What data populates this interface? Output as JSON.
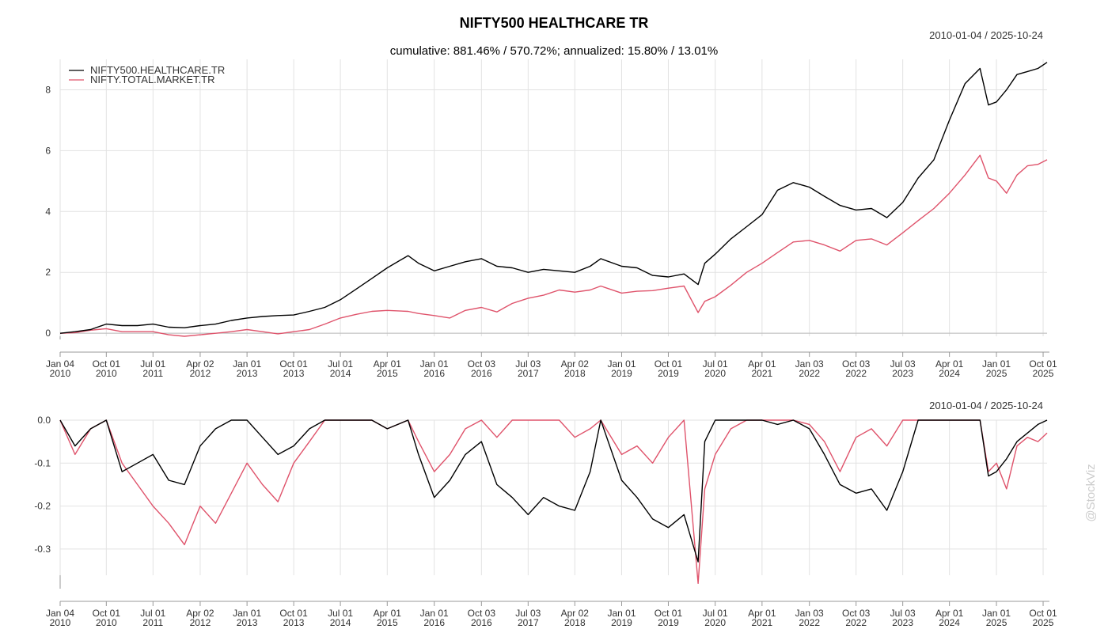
{
  "chart_data": [
    {
      "type": "line",
      "title": "NIFTY500 HEALTHCARE TR",
      "subtitle": "cumulative: 881.46% / 570.72%; annualized: 15.80% / 13.01%",
      "date_range": "2010-01-04 / 2025-10-24",
      "ylim": [
        -0.1,
        9.0
      ],
      "y_ticks": [
        0,
        2,
        4,
        6,
        8
      ],
      "x_ticks": [
        {
          "date": "2010-01-04",
          "label1": "Jan 04",
          "label2": "2010"
        },
        {
          "date": "2010-10-01",
          "label1": "Oct 01",
          "label2": "2010"
        },
        {
          "date": "2011-07-01",
          "label1": "Jul 01",
          "label2": "2011"
        },
        {
          "date": "2012-04-02",
          "label1": "Apr 02",
          "label2": "2012"
        },
        {
          "date": "2013-01-01",
          "label1": "Jan 01",
          "label2": "2013"
        },
        {
          "date": "2013-10-01",
          "label1": "Oct 01",
          "label2": "2013"
        },
        {
          "date": "2014-07-01",
          "label1": "Jul 01",
          "label2": "2014"
        },
        {
          "date": "2015-04-01",
          "label1": "Apr 01",
          "label2": "2015"
        },
        {
          "date": "2016-01-01",
          "label1": "Jan 01",
          "label2": "2016"
        },
        {
          "date": "2016-10-03",
          "label1": "Oct 03",
          "label2": "2016"
        },
        {
          "date": "2017-07-03",
          "label1": "Jul 03",
          "label2": "2017"
        },
        {
          "date": "2018-04-02",
          "label1": "Apr 02",
          "label2": "2018"
        },
        {
          "date": "2019-01-01",
          "label1": "Jan 01",
          "label2": "2019"
        },
        {
          "date": "2019-10-01",
          "label1": "Oct 01",
          "label2": "2019"
        },
        {
          "date": "2020-07-01",
          "label1": "Jul 01",
          "label2": "2020"
        },
        {
          "date": "2021-04-01",
          "label1": "Apr 01",
          "label2": "2021"
        },
        {
          "date": "2022-01-03",
          "label1": "Jan 03",
          "label2": "2022"
        },
        {
          "date": "2022-10-03",
          "label1": "Oct 03",
          "label2": "2022"
        },
        {
          "date": "2023-07-03",
          "label1": "Jul 03",
          "label2": "2023"
        },
        {
          "date": "2024-04-01",
          "label1": "Apr 01",
          "label2": "2024"
        },
        {
          "date": "2025-01-01",
          "label1": "Jan 01",
          "label2": "2025"
        },
        {
          "date": "2025-10-01",
          "label1": "Oct 01",
          "label2": "2025"
        }
      ],
      "legend_position": "top-left",
      "series": [
        {
          "name": "NIFTY500.HEALTHCARE.TR",
          "color": "#000000",
          "x": [
            "2010-01-04",
            "2010-04-01",
            "2010-07-01",
            "2010-10-01",
            "2011-01-01",
            "2011-04-01",
            "2011-07-01",
            "2011-10-01",
            "2012-01-01",
            "2012-04-02",
            "2012-07-01",
            "2012-10-01",
            "2013-01-01",
            "2013-04-01",
            "2013-07-01",
            "2013-10-01",
            "2014-01-01",
            "2014-04-01",
            "2014-07-01",
            "2014-10-01",
            "2015-01-01",
            "2015-04-01",
            "2015-08-01",
            "2015-10-01",
            "2016-01-01",
            "2016-04-01",
            "2016-07-01",
            "2016-10-03",
            "2017-01-01",
            "2017-04-01",
            "2017-07-03",
            "2017-10-01",
            "2018-01-01",
            "2018-04-02",
            "2018-07-01",
            "2018-09-01",
            "2019-01-01",
            "2019-04-01",
            "2019-07-01",
            "2019-10-01",
            "2020-01-01",
            "2020-03-23",
            "2020-05-01",
            "2020-07-01",
            "2020-10-01",
            "2021-01-01",
            "2021-04-01",
            "2021-07-01",
            "2021-10-01",
            "2022-01-03",
            "2022-04-01",
            "2022-07-01",
            "2022-10-03",
            "2023-01-01",
            "2023-04-01",
            "2023-07-03",
            "2023-10-01",
            "2024-01-01",
            "2024-04-01",
            "2024-07-01",
            "2024-09-27",
            "2024-11-15",
            "2025-01-01",
            "2025-03-01",
            "2025-05-01",
            "2025-07-01",
            "2025-09-01",
            "2025-10-24"
          ],
          "values": [
            0.0,
            0.05,
            0.12,
            0.3,
            0.25,
            0.25,
            0.3,
            0.2,
            0.18,
            0.25,
            0.3,
            0.42,
            0.5,
            0.55,
            0.58,
            0.6,
            0.72,
            0.85,
            1.1,
            1.45,
            1.8,
            2.15,
            2.55,
            2.3,
            2.05,
            2.2,
            2.35,
            2.45,
            2.2,
            2.15,
            2.0,
            2.1,
            2.05,
            2.0,
            2.2,
            2.45,
            2.2,
            2.15,
            1.9,
            1.85,
            1.95,
            1.6,
            2.3,
            2.6,
            3.1,
            3.5,
            3.9,
            4.7,
            4.95,
            4.8,
            4.5,
            4.2,
            4.05,
            4.1,
            3.8,
            4.3,
            5.1,
            5.7,
            7.0,
            8.2,
            8.7,
            7.5,
            7.6,
            8.0,
            8.5,
            8.6,
            8.7,
            8.9
          ]
        },
        {
          "name": "NIFTY.TOTAL.MARKET.TR",
          "color": "#df536b",
          "x": [
            "2010-01-04",
            "2010-04-01",
            "2010-07-01",
            "2010-10-01",
            "2011-01-01",
            "2011-04-01",
            "2011-07-01",
            "2011-10-01",
            "2012-01-01",
            "2012-04-02",
            "2012-07-01",
            "2012-10-01",
            "2013-01-01",
            "2013-04-01",
            "2013-07-01",
            "2013-10-01",
            "2014-01-01",
            "2014-04-01",
            "2014-07-01",
            "2014-10-01",
            "2015-01-01",
            "2015-04-01",
            "2015-08-01",
            "2015-10-01",
            "2016-01-01",
            "2016-04-01",
            "2016-07-01",
            "2016-10-03",
            "2017-01-01",
            "2017-04-01",
            "2017-07-03",
            "2017-10-01",
            "2018-01-01",
            "2018-04-02",
            "2018-07-01",
            "2018-09-01",
            "2019-01-01",
            "2019-04-01",
            "2019-07-01",
            "2019-10-01",
            "2020-01-01",
            "2020-03-23",
            "2020-05-01",
            "2020-07-01",
            "2020-10-01",
            "2021-01-01",
            "2021-04-01",
            "2021-07-01",
            "2021-10-01",
            "2022-01-03",
            "2022-04-01",
            "2022-07-01",
            "2022-10-03",
            "2023-01-01",
            "2023-04-01",
            "2023-07-03",
            "2023-10-01",
            "2024-01-01",
            "2024-04-01",
            "2024-07-01",
            "2024-09-27",
            "2024-11-15",
            "2025-01-01",
            "2025-03-01",
            "2025-05-01",
            "2025-07-01",
            "2025-09-01",
            "2025-10-24"
          ],
          "values": [
            0.0,
            0.02,
            0.1,
            0.15,
            0.05,
            0.05,
            0.05,
            -0.05,
            -0.1,
            -0.05,
            0.0,
            0.05,
            0.12,
            0.05,
            -0.02,
            0.05,
            0.12,
            0.3,
            0.5,
            0.62,
            0.72,
            0.75,
            0.72,
            0.65,
            0.58,
            0.5,
            0.75,
            0.85,
            0.7,
            0.98,
            1.15,
            1.25,
            1.42,
            1.35,
            1.42,
            1.55,
            1.32,
            1.38,
            1.4,
            1.48,
            1.55,
            0.68,
            1.05,
            1.2,
            1.58,
            2.0,
            2.3,
            2.65,
            3.0,
            3.05,
            2.9,
            2.7,
            3.05,
            3.1,
            2.9,
            3.3,
            3.7,
            4.1,
            4.6,
            5.2,
            5.85,
            5.1,
            5.0,
            4.6,
            5.2,
            5.5,
            5.55,
            5.7
          ]
        }
      ]
    },
    {
      "type": "line",
      "date_range": "2010-01-04 / 2025-10-24",
      "ylim": [
        -0.4,
        0.0
      ],
      "y_ticks": [
        0.0,
        -0.1,
        -0.2,
        -0.3
      ],
      "y_tick_labels": [
        "0.0",
        "-0.1",
        "-0.2",
        "-0.3"
      ],
      "series": [
        {
          "name": "NIFTY500.HEALTHCARE.TR",
          "color": "#000000",
          "x": [
            "2010-01-04",
            "2010-04-01",
            "2010-07-01",
            "2010-10-01",
            "2011-01-01",
            "2011-04-01",
            "2011-07-01",
            "2011-10-01",
            "2012-01-01",
            "2012-04-02",
            "2012-07-01",
            "2012-10-01",
            "2013-01-01",
            "2013-04-01",
            "2013-07-01",
            "2013-10-01",
            "2014-01-01",
            "2014-04-01",
            "2014-07-01",
            "2014-10-01",
            "2015-01-01",
            "2015-04-01",
            "2015-08-01",
            "2015-10-01",
            "2016-01-01",
            "2016-04-01",
            "2016-07-01",
            "2016-10-03",
            "2017-01-01",
            "2017-04-01",
            "2017-07-03",
            "2017-10-01",
            "2018-01-01",
            "2018-04-02",
            "2018-07-01",
            "2018-09-01",
            "2019-01-01",
            "2019-04-01",
            "2019-07-01",
            "2019-10-01",
            "2020-01-01",
            "2020-03-23",
            "2020-05-01",
            "2020-07-01",
            "2020-10-01",
            "2021-01-01",
            "2021-04-01",
            "2021-07-01",
            "2021-10-01",
            "2022-01-03",
            "2022-04-01",
            "2022-07-01",
            "2022-10-03",
            "2023-01-01",
            "2023-04-01",
            "2023-07-03",
            "2023-10-01",
            "2024-01-01",
            "2024-04-01",
            "2024-07-01",
            "2024-09-27",
            "2024-11-15",
            "2025-01-01",
            "2025-03-01",
            "2025-05-01",
            "2025-07-01",
            "2025-09-01",
            "2025-10-24"
          ],
          "values": [
            0.0,
            -0.06,
            -0.02,
            0.0,
            -0.12,
            -0.1,
            -0.08,
            -0.14,
            -0.15,
            -0.06,
            -0.02,
            0.0,
            0.0,
            -0.04,
            -0.08,
            -0.06,
            -0.02,
            0.0,
            0.0,
            0.0,
            0.0,
            -0.02,
            0.0,
            -0.08,
            -0.18,
            -0.14,
            -0.08,
            -0.05,
            -0.15,
            -0.18,
            -0.22,
            -0.18,
            -0.2,
            -0.21,
            -0.12,
            0.0,
            -0.14,
            -0.18,
            -0.23,
            -0.25,
            -0.22,
            -0.33,
            -0.05,
            0.0,
            0.0,
            0.0,
            0.0,
            -0.01,
            0.0,
            -0.02,
            -0.08,
            -0.15,
            -0.17,
            -0.16,
            -0.21,
            -0.12,
            0.0,
            0.0,
            0.0,
            0.0,
            0.0,
            -0.13,
            -0.12,
            -0.09,
            -0.05,
            -0.03,
            -0.01,
            0.0
          ]
        },
        {
          "name": "NIFTY.TOTAL.MARKET.TR",
          "color": "#df536b",
          "x": [
            "2010-01-04",
            "2010-04-01",
            "2010-07-01",
            "2010-10-01",
            "2011-01-01",
            "2011-04-01",
            "2011-07-01",
            "2011-10-01",
            "2012-01-01",
            "2012-04-02",
            "2012-07-01",
            "2012-10-01",
            "2013-01-01",
            "2013-04-01",
            "2013-07-01",
            "2013-10-01",
            "2014-01-01",
            "2014-04-01",
            "2014-07-01",
            "2014-10-01",
            "2015-01-01",
            "2015-04-01",
            "2015-08-01",
            "2015-10-01",
            "2016-01-01",
            "2016-04-01",
            "2016-07-01",
            "2016-10-03",
            "2017-01-01",
            "2017-04-01",
            "2017-07-03",
            "2017-10-01",
            "2018-01-01",
            "2018-04-02",
            "2018-07-01",
            "2018-09-01",
            "2019-01-01",
            "2019-04-01",
            "2019-07-01",
            "2019-10-01",
            "2020-01-01",
            "2020-03-23",
            "2020-05-01",
            "2020-07-01",
            "2020-10-01",
            "2021-01-01",
            "2021-04-01",
            "2021-07-01",
            "2021-10-01",
            "2022-01-03",
            "2022-04-01",
            "2022-07-01",
            "2022-10-03",
            "2023-01-01",
            "2023-04-01",
            "2023-07-03",
            "2023-10-01",
            "2024-01-01",
            "2024-04-01",
            "2024-07-01",
            "2024-09-27",
            "2024-11-15",
            "2025-01-01",
            "2025-03-01",
            "2025-05-01",
            "2025-07-01",
            "2025-09-01",
            "2025-10-24"
          ],
          "values": [
            0.0,
            -0.08,
            -0.02,
            0.0,
            -0.1,
            -0.15,
            -0.2,
            -0.24,
            -0.29,
            -0.2,
            -0.24,
            -0.17,
            -0.1,
            -0.15,
            -0.19,
            -0.1,
            -0.05,
            0.0,
            0.0,
            0.0,
            0.0,
            -0.02,
            0.0,
            -0.05,
            -0.12,
            -0.08,
            -0.02,
            0.0,
            -0.04,
            0.0,
            0.0,
            0.0,
            0.0,
            -0.04,
            -0.02,
            0.0,
            -0.08,
            -0.06,
            -0.1,
            -0.04,
            0.0,
            -0.38,
            -0.16,
            -0.08,
            -0.02,
            0.0,
            0.0,
            0.0,
            0.0,
            -0.01,
            -0.05,
            -0.12,
            -0.04,
            -0.02,
            -0.06,
            0.0,
            0.0,
            0.0,
            0.0,
            0.0,
            0.0,
            -0.12,
            -0.1,
            -0.16,
            -0.06,
            -0.04,
            -0.05,
            -0.03
          ]
        }
      ]
    }
  ],
  "watermark": "@StockViz"
}
